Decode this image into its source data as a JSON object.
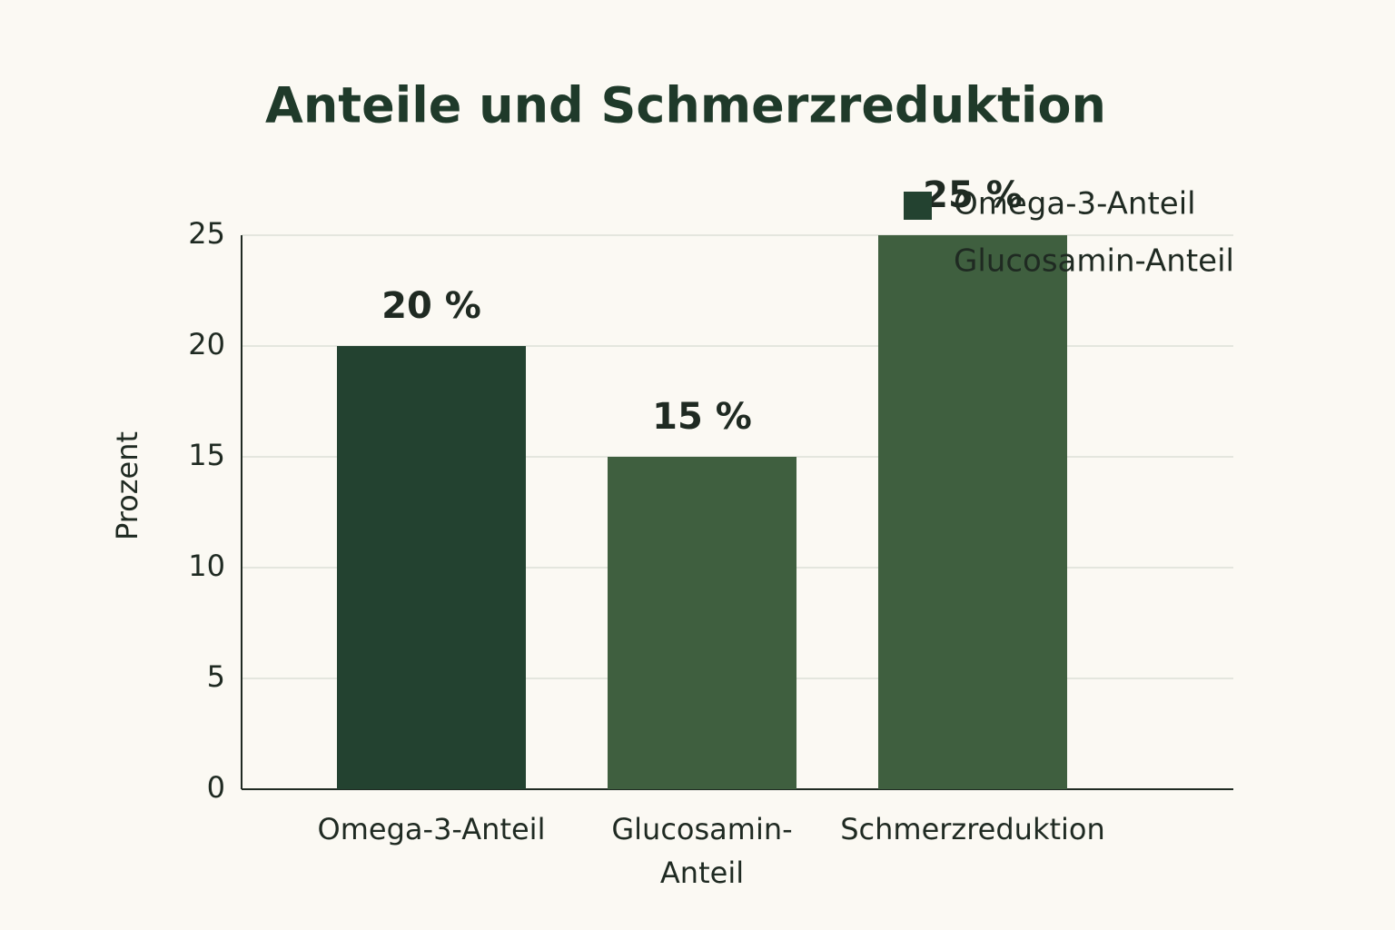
{
  "chart_data": {
    "type": "bar",
    "title": "Anteile und Schmerzreduktion",
    "ylabel": "Prozent",
    "categories": [
      "Omega-3-Anteil",
      "Glucosamin-Anteil",
      "Schmerzreduktion"
    ],
    "values": [
      20,
      15,
      25
    ],
    "value_labels": [
      "20 %",
      "15 %",
      "25 %"
    ],
    "colors": [
      "#234230",
      "#3f5f3f",
      "#3f5f3f"
    ],
    "legend": [
      {
        "name": "Omega-3-Anteil",
        "color": "#234230"
      },
      {
        "name": "Glucosamin-Anteil",
        "color": "#3f5f3f"
      }
    ],
    "legend_position": "upper right",
    "ylim": [
      0,
      25
    ],
    "yticks": [
      0,
      5,
      10,
      15,
      20,
      25
    ],
    "grid": true
  }
}
